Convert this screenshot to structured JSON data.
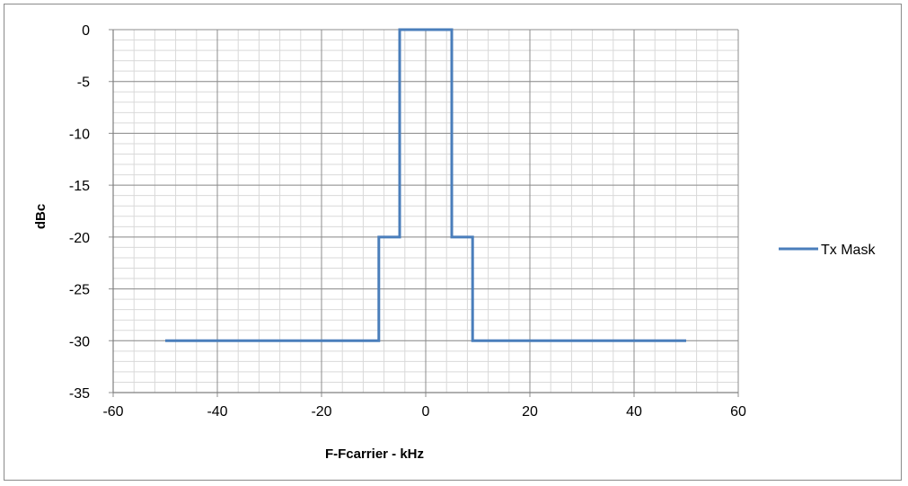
{
  "chart_data": {
    "type": "line",
    "title": "",
    "xlabel": "F-Fcarrier - kHz",
    "ylabel": "dBc",
    "xlim": [
      -60,
      60
    ],
    "ylim": [
      -35,
      0
    ],
    "x_major_step": 20,
    "y_major_step": 5,
    "x_minor_step": 4,
    "y_minor_step": 1,
    "grid": true,
    "legend_position": "right",
    "x_ticks": [
      "-60",
      "-40",
      "-20",
      "0",
      "20",
      "40",
      "60"
    ],
    "y_ticks": [
      "0",
      "-5",
      "-10",
      "-15",
      "-20",
      "-25",
      "-30",
      "-35"
    ],
    "series": [
      {
        "name": "Tx Mask",
        "color": "#4a7ebb",
        "x": [
          -50,
          -9,
          -9,
          -5,
          -5,
          5,
          5,
          9,
          9,
          50
        ],
        "y": [
          -30,
          -30,
          -20,
          -20,
          0,
          0,
          -20,
          -20,
          -30,
          -30
        ]
      }
    ]
  }
}
